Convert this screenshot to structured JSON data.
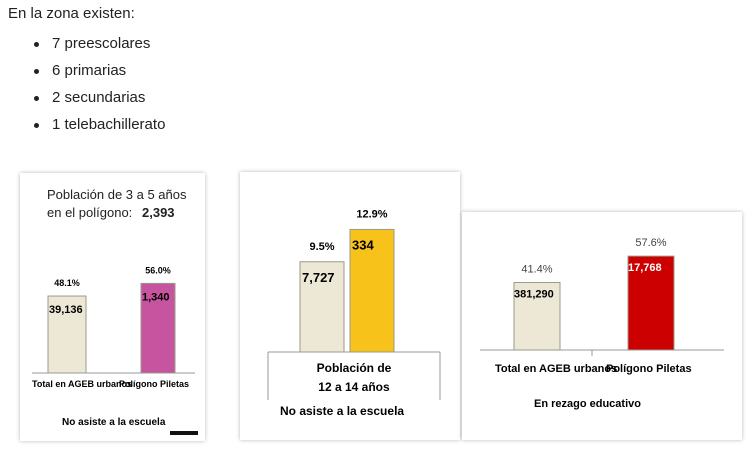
{
  "intro": "En la zona existen:",
  "schools": [
    "7 preescolares",
    "6 primarias",
    "2 secundarias",
    "1 telebachillerato"
  ],
  "colors": {
    "beige": "#ede8d6",
    "pink": "#c7549f",
    "yellow": "#f7c31b",
    "red": "#cc0000"
  },
  "chart_data": [
    {
      "type": "bar",
      "title": "Población de 3 a  5 años",
      "subtitle_label": "en el polígono:",
      "subtitle_value": "2,393",
      "categories": [
        "Total en AGEB urbanos",
        "Polígono Piletas"
      ],
      "values": [
        48.1,
        56.0
      ],
      "percent_labels": [
        "48.1%",
        "56.0%"
      ],
      "count_labels": [
        "39,136",
        "1,340"
      ],
      "bar_colors": [
        "#ede8d6",
        "#c7549f"
      ],
      "footer": "No asiste a la escuela",
      "ylim": [
        0,
        100
      ]
    },
    {
      "type": "bar",
      "values": [
        9.5,
        12.9
      ],
      "percent_labels": [
        "9.5%",
        "12.9%"
      ],
      "count_labels": [
        "7,727",
        "334"
      ],
      "bar_colors": [
        "#ede8d6",
        "#f7c31b"
      ],
      "category_line1": "Población de",
      "category_line2": "12 a 14 años",
      "footer": "No asiste a la escuela",
      "ylim": [
        0,
        15
      ]
    },
    {
      "type": "bar",
      "categories": [
        "Total en AGEB urbanos",
        "Polígono Piletas"
      ],
      "values": [
        41.4,
        57.6
      ],
      "percent_labels": [
        "41.4%",
        "57.6%"
      ],
      "count_labels": [
        "381,290",
        "17,768"
      ],
      "bar_colors": [
        "#ede8d6",
        "#cc0000"
      ],
      "footer": "En rezago educativo",
      "ylim": [
        0,
        100
      ]
    }
  ]
}
